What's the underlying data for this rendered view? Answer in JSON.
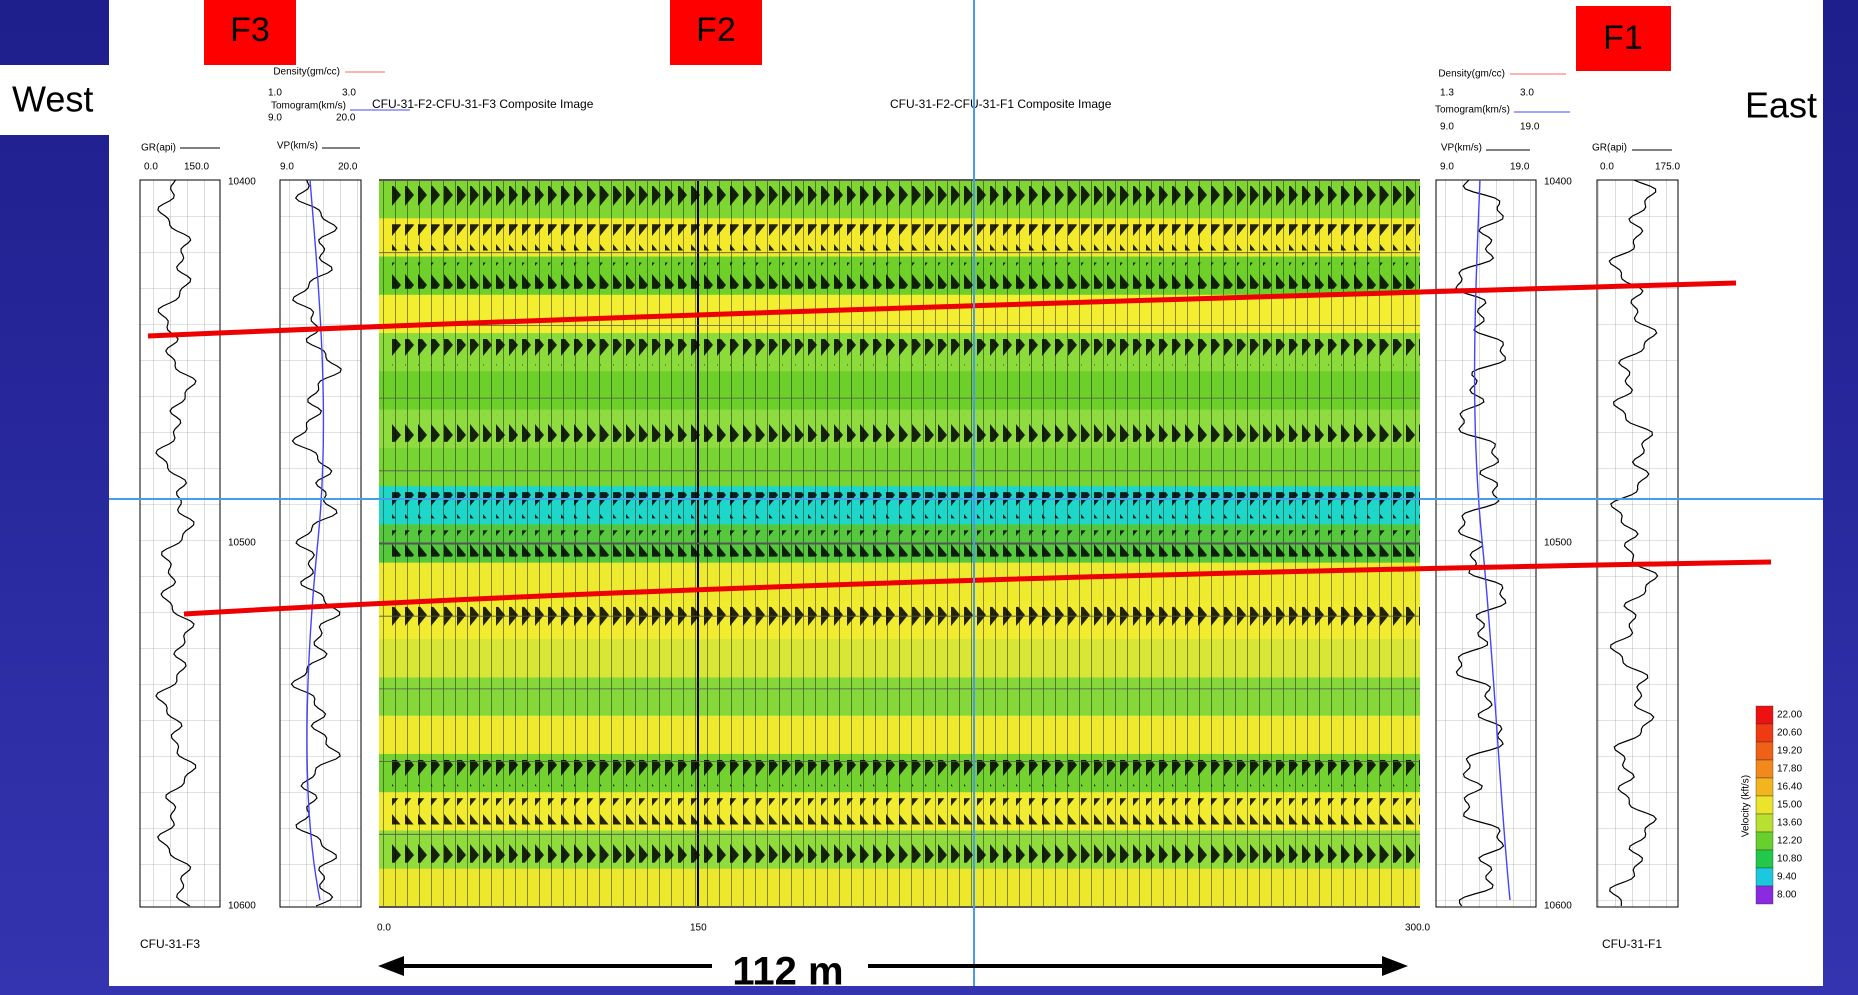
{
  "wells": {
    "west_label": "F3",
    "middle_label": "F2",
    "east_label": "F1"
  },
  "sides": {
    "west": "West",
    "east": "East"
  },
  "images": {
    "left_title": "CFU-31-F2-CFU-31-F3 Composite Image",
    "right_title": "CFU-31-F2-CFU-31-F1 Composite Image"
  },
  "left_logs": {
    "density": "Density(gm/cc)",
    "density_min": "1.0",
    "density_max": "3.0",
    "tomogram": "Tomogram(km/s)",
    "tomogram_min": "9.0",
    "tomogram_max": "20.0",
    "vp": "VP(km/s)",
    "vp_min": "9.0",
    "vp_max": "20.0",
    "gr": "GR(api)",
    "gr_min": "0.0",
    "gr_max": "150.0",
    "well": "CFU-31-F3"
  },
  "right_logs": {
    "density": "Density(gm/cc)",
    "density_min": "1.3",
    "density_max": "3.0",
    "tomogram": "Tomogram(km/s)",
    "tomogram_min": "9.0",
    "tomogram_max": "19.0",
    "vp": "VP(km/s)",
    "vp_min": "9.0",
    "vp_max": "19.0",
    "gr": "GR(api)",
    "gr_min": "0.0",
    "gr_max": "175.0",
    "well": "CFU-31-F1"
  },
  "depths": [
    "10400",
    "10500",
    "10600"
  ],
  "distance_ticks": [
    "0.0",
    "150",
    "300.0"
  ],
  "spacing": "112 m",
  "colorbar": {
    "title": "Velocity (kft/s)",
    "labels": [
      "22.00",
      "20.60",
      "19.20",
      "17.80",
      "16.40",
      "15.00",
      "13.60",
      "12.20",
      "10.80",
      "9.40",
      "8.00"
    ]
  }
}
